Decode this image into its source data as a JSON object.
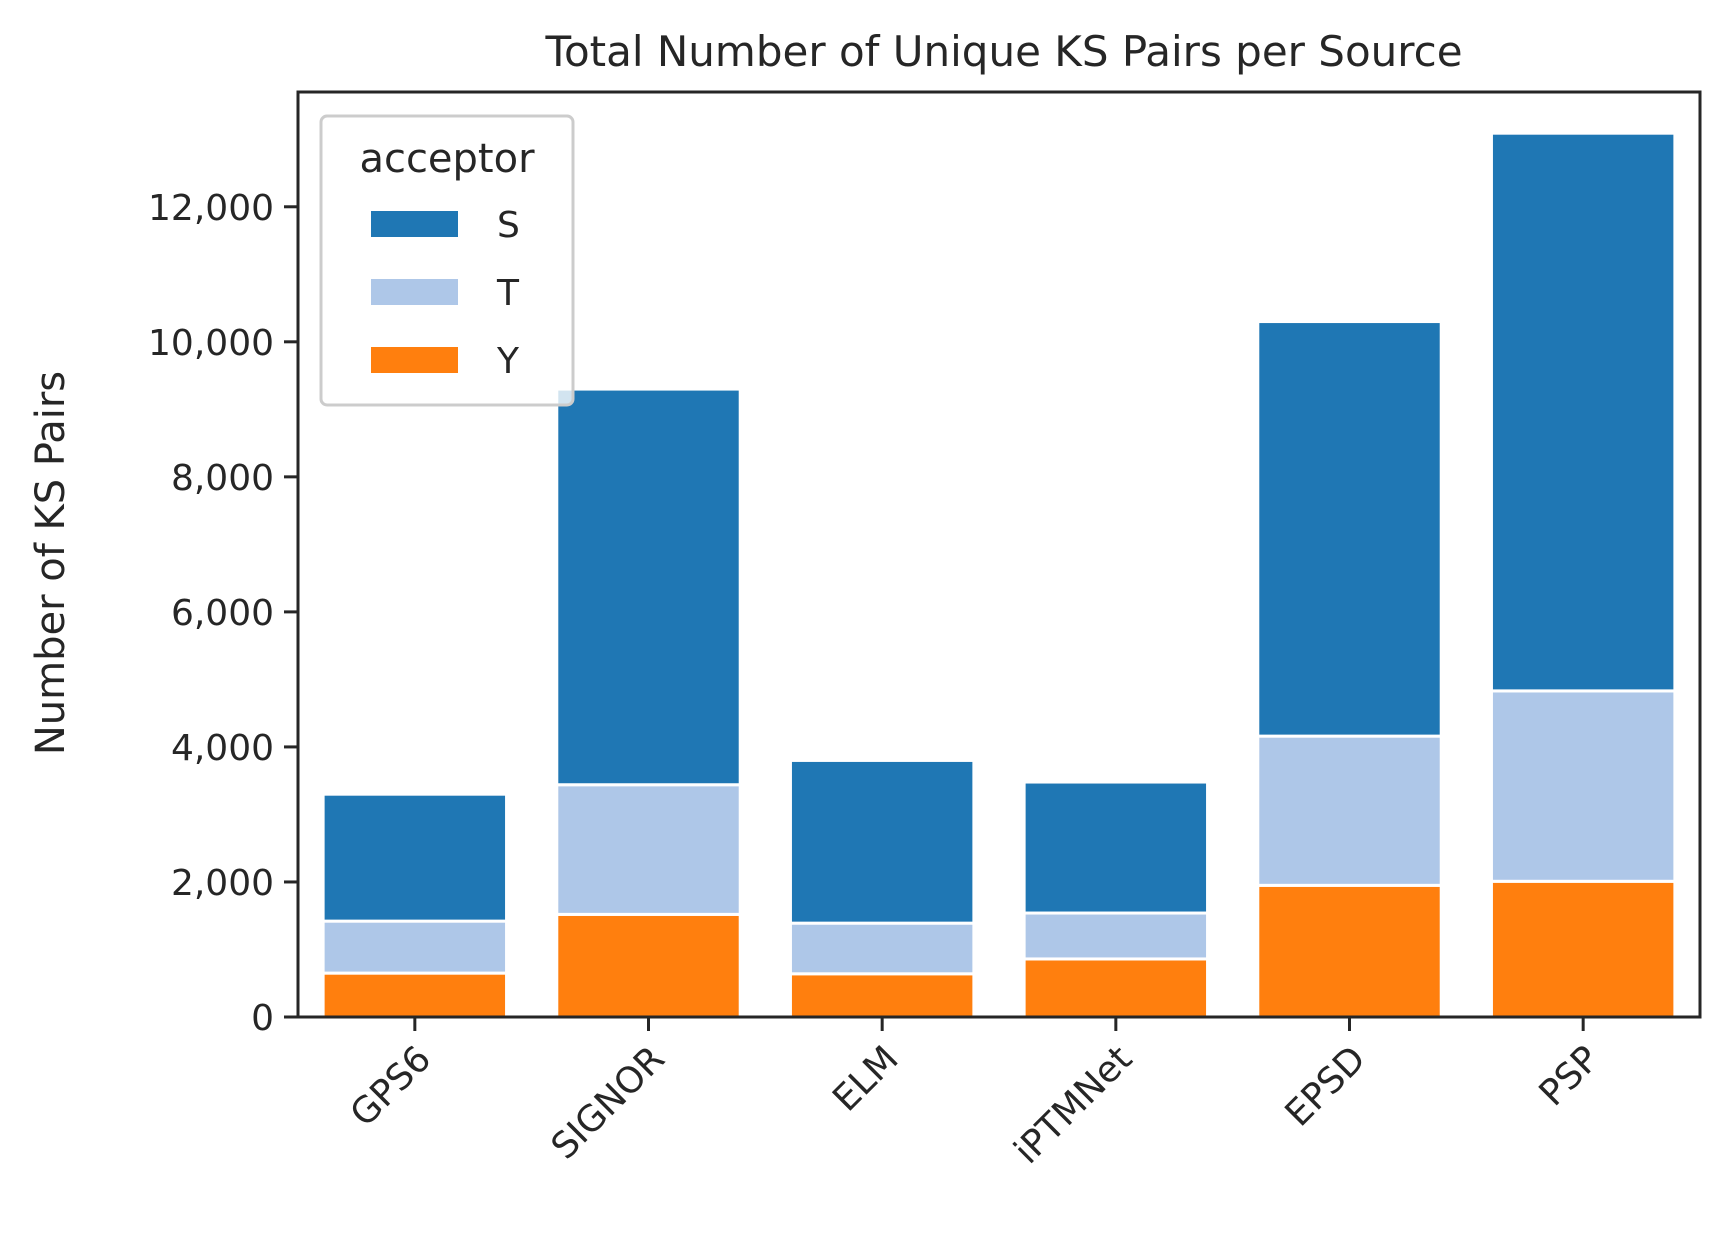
{
  "chart_data": {
    "type": "bar",
    "stacked": true,
    "title": "Total Number of Unique KS Pairs per Source",
    "xlabel": "",
    "ylabel": "Number of KS Pairs",
    "categories": [
      "GPS6",
      "SIGNOR",
      "ELM",
      "iPTMNet",
      "EPSD",
      "PSP"
    ],
    "ylim": [
      0,
      13700
    ],
    "yticks": [
      0,
      2000,
      4000,
      6000,
      8000,
      10000,
      12000
    ],
    "ytick_labels": [
      "0",
      "2,000",
      "4,000",
      "6,000",
      "8,000",
      "10,000",
      "12,000"
    ],
    "grid": false,
    "legend": {
      "title": "acceptor",
      "placement": "top-left"
    },
    "series": [
      {
        "name": "Y",
        "color": "#ff7f0e",
        "values": [
          650,
          1520,
          640,
          860,
          1950,
          2010
        ]
      },
      {
        "name": "T",
        "color": "#aec7e8",
        "values": [
          770,
          1920,
          750,
          680,
          2210,
          2820
        ]
      },
      {
        "name": "S",
        "color": "#1f77b4",
        "values": [
          1880,
          5860,
          2410,
          1940,
          6140,
          8260
        ]
      }
    ],
    "legend_order": [
      "S",
      "T",
      "Y"
    ]
  }
}
